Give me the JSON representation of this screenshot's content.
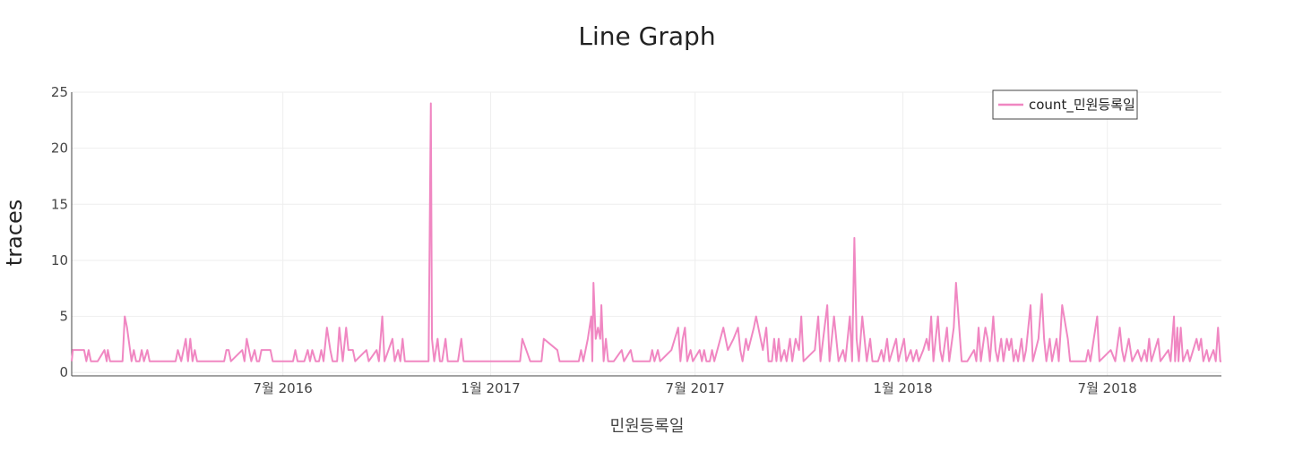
{
  "chart_data": {
    "type": "line",
    "title": "Line Graph",
    "xlabel": "민원등록일",
    "ylabel": "traces",
    "x_tick_labels": [
      "7월 2016",
      "1월 2017",
      "7월 2017",
      "1월 2018",
      "7월 2018"
    ],
    "x_ticks": [
      "2016-07-01",
      "2017-01-01",
      "2017-07-01",
      "2018-01-01",
      "2018-07-01"
    ],
    "xlim": [
      "2015-12-27",
      "2018-10-10"
    ],
    "y_ticks": [
      0,
      5,
      10,
      15,
      20,
      25
    ],
    "ylim": [
      -0.3,
      25
    ],
    "grid": true,
    "legend_position": "top-right",
    "series": [
      {
        "name": "count_민원등록일",
        "color": "#f087c2",
        "points": [
          [
            "2015-12-27",
            1
          ],
          [
            "2015-12-28",
            2
          ],
          [
            "2016-01-07",
            2
          ],
          [
            "2016-01-09",
            1
          ],
          [
            "2016-01-11",
            2
          ],
          [
            "2016-01-13",
            1
          ],
          [
            "2016-01-19",
            1
          ],
          [
            "2016-01-25",
            2
          ],
          [
            "2016-01-27",
            1
          ],
          [
            "2016-01-28",
            2
          ],
          [
            "2016-01-30",
            1
          ],
          [
            "2016-02-10",
            1
          ],
          [
            "2016-02-12",
            5
          ],
          [
            "2016-02-14",
            4
          ],
          [
            "2016-02-18",
            1
          ],
          [
            "2016-02-20",
            2
          ],
          [
            "2016-02-22",
            1
          ],
          [
            "2016-02-25",
            1
          ],
          [
            "2016-02-27",
            2
          ],
          [
            "2016-02-29",
            1
          ],
          [
            "2016-03-03",
            2
          ],
          [
            "2016-03-05",
            1
          ],
          [
            "2016-03-28",
            1
          ],
          [
            "2016-03-30",
            2
          ],
          [
            "2016-04-02",
            1
          ],
          [
            "2016-04-06",
            3
          ],
          [
            "2016-04-08",
            1
          ],
          [
            "2016-04-10",
            3
          ],
          [
            "2016-04-12",
            1
          ],
          [
            "2016-04-14",
            2
          ],
          [
            "2016-04-16",
            1
          ],
          [
            "2016-05-10",
            1
          ],
          [
            "2016-05-12",
            2
          ],
          [
            "2016-05-14",
            2
          ],
          [
            "2016-05-16",
            1
          ],
          [
            "2016-05-26",
            2
          ],
          [
            "2016-05-28",
            1
          ],
          [
            "2016-05-30",
            3
          ],
          [
            "2016-06-01",
            2
          ],
          [
            "2016-06-03",
            1
          ],
          [
            "2016-06-06",
            2
          ],
          [
            "2016-06-08",
            1
          ],
          [
            "2016-06-10",
            1
          ],
          [
            "2016-06-12",
            2
          ],
          [
            "2016-06-20",
            2
          ],
          [
            "2016-06-22",
            1
          ],
          [
            "2016-07-10",
            1
          ],
          [
            "2016-07-12",
            2
          ],
          [
            "2016-07-14",
            1
          ],
          [
            "2016-07-20",
            1
          ],
          [
            "2016-07-23",
            2
          ],
          [
            "2016-07-25",
            1
          ],
          [
            "2016-07-27",
            2
          ],
          [
            "2016-07-30",
            1
          ],
          [
            "2016-08-02",
            1
          ],
          [
            "2016-08-04",
            2
          ],
          [
            "2016-08-06",
            1
          ],
          [
            "2016-08-09",
            4
          ],
          [
            "2016-08-12",
            2
          ],
          [
            "2016-08-14",
            1
          ],
          [
            "2016-08-18",
            1
          ],
          [
            "2016-08-20",
            4
          ],
          [
            "2016-08-23",
            1
          ],
          [
            "2016-08-26",
            4
          ],
          [
            "2016-08-28",
            2
          ],
          [
            "2016-09-01",
            2
          ],
          [
            "2016-09-03",
            1
          ],
          [
            "2016-09-13",
            2
          ],
          [
            "2016-09-15",
            1
          ],
          [
            "2016-09-22",
            2
          ],
          [
            "2016-09-24",
            1
          ],
          [
            "2016-09-27",
            5
          ],
          [
            "2016-09-29",
            1
          ],
          [
            "2016-10-06",
            3
          ],
          [
            "2016-10-08",
            1
          ],
          [
            "2016-10-11",
            2
          ],
          [
            "2016-10-13",
            1
          ],
          [
            "2016-10-15",
            3
          ],
          [
            "2016-10-17",
            1
          ],
          [
            "2016-11-07",
            1
          ],
          [
            "2016-11-09",
            24
          ],
          [
            "2016-11-10",
            3
          ],
          [
            "2016-11-12",
            1
          ],
          [
            "2016-11-15",
            3
          ],
          [
            "2016-11-17",
            1
          ],
          [
            "2016-11-19",
            1
          ],
          [
            "2016-11-22",
            3
          ],
          [
            "2016-11-24",
            1
          ],
          [
            "2016-12-03",
            1
          ],
          [
            "2016-12-06",
            3
          ],
          [
            "2016-12-08",
            1
          ],
          [
            "2017-01-27",
            1
          ],
          [
            "2017-01-29",
            3
          ],
          [
            "2017-02-05",
            1
          ],
          [
            "2017-02-15",
            1
          ],
          [
            "2017-02-17",
            3
          ],
          [
            "2017-03-01",
            2
          ],
          [
            "2017-03-03",
            1
          ],
          [
            "2017-03-20",
            1
          ],
          [
            "2017-03-22",
            2
          ],
          [
            "2017-03-24",
            1
          ],
          [
            "2017-03-28",
            3
          ],
          [
            "2017-03-31",
            5
          ],
          [
            "2017-04-01",
            1
          ],
          [
            "2017-04-02",
            8
          ],
          [
            "2017-04-04",
            3
          ],
          [
            "2017-04-06",
            4
          ],
          [
            "2017-04-08",
            3
          ],
          [
            "2017-04-09",
            6
          ],
          [
            "2017-04-11",
            1
          ],
          [
            "2017-04-13",
            3
          ],
          [
            "2017-04-15",
            1
          ],
          [
            "2017-04-20",
            1
          ],
          [
            "2017-04-27",
            2
          ],
          [
            "2017-04-29",
            1
          ],
          [
            "2017-05-05",
            2
          ],
          [
            "2017-05-07",
            1
          ],
          [
            "2017-05-22",
            1
          ],
          [
            "2017-05-24",
            2
          ],
          [
            "2017-05-26",
            1
          ],
          [
            "2017-05-29",
            2
          ],
          [
            "2017-05-31",
            1
          ],
          [
            "2017-06-10",
            2
          ],
          [
            "2017-06-16",
            4
          ],
          [
            "2017-06-18",
            1
          ],
          [
            "2017-06-20",
            3
          ],
          [
            "2017-06-22",
            4
          ],
          [
            "2017-06-24",
            1
          ],
          [
            "2017-06-27",
            2
          ],
          [
            "2017-06-29",
            1
          ],
          [
            "2017-07-05",
            2
          ],
          [
            "2017-07-07",
            1
          ],
          [
            "2017-07-09",
            2
          ],
          [
            "2017-07-11",
            1
          ],
          [
            "2017-07-14",
            1
          ],
          [
            "2017-07-16",
            2
          ],
          [
            "2017-07-18",
            1
          ],
          [
            "2017-07-26",
            4
          ],
          [
            "2017-07-30",
            2
          ],
          [
            "2017-08-04",
            3
          ],
          [
            "2017-08-08",
            4
          ],
          [
            "2017-08-10",
            2
          ],
          [
            "2017-08-12",
            1
          ],
          [
            "2017-08-15",
            3
          ],
          [
            "2017-08-17",
            2
          ],
          [
            "2017-08-22",
            4
          ],
          [
            "2017-08-24",
            5
          ],
          [
            "2017-08-30",
            2
          ],
          [
            "2017-09-02",
            4
          ],
          [
            "2017-09-04",
            1
          ],
          [
            "2017-09-07",
            1
          ],
          [
            "2017-09-09",
            3
          ],
          [
            "2017-09-11",
            1
          ],
          [
            "2017-09-13",
            3
          ],
          [
            "2017-09-15",
            1
          ],
          [
            "2017-09-18",
            2
          ],
          [
            "2017-09-20",
            1
          ],
          [
            "2017-09-23",
            3
          ],
          [
            "2017-09-25",
            1
          ],
          [
            "2017-09-28",
            3
          ],
          [
            "2017-10-01",
            2
          ],
          [
            "2017-10-03",
            5
          ],
          [
            "2017-10-05",
            1
          ],
          [
            "2017-10-15",
            2
          ],
          [
            "2017-10-18",
            5
          ],
          [
            "2017-10-20",
            1
          ],
          [
            "2017-10-26",
            6
          ],
          [
            "2017-10-28",
            1
          ],
          [
            "2017-11-01",
            5
          ],
          [
            "2017-11-03",
            3
          ],
          [
            "2017-11-05",
            1
          ],
          [
            "2017-11-09",
            2
          ],
          [
            "2017-11-11",
            1
          ],
          [
            "2017-11-15",
            5
          ],
          [
            "2017-11-17",
            1
          ],
          [
            "2017-11-19",
            12
          ],
          [
            "2017-11-21",
            3
          ],
          [
            "2017-11-23",
            1
          ],
          [
            "2017-11-26",
            5
          ],
          [
            "2017-11-28",
            3
          ],
          [
            "2017-11-30",
            1
          ],
          [
            "2017-12-03",
            3
          ],
          [
            "2017-12-05",
            1
          ],
          [
            "2017-12-10",
            1
          ],
          [
            "2017-12-13",
            2
          ],
          [
            "2017-12-15",
            1
          ],
          [
            "2017-12-18",
            3
          ],
          [
            "2017-12-20",
            1
          ],
          [
            "2017-12-26",
            3
          ],
          [
            "2017-12-28",
            1
          ],
          [
            "2018-01-02",
            3
          ],
          [
            "2018-01-04",
            1
          ],
          [
            "2018-01-08",
            2
          ],
          [
            "2018-01-10",
            1
          ],
          [
            "2018-01-13",
            2
          ],
          [
            "2018-01-15",
            1
          ],
          [
            "2018-01-19",
            2
          ],
          [
            "2018-01-22",
            3
          ],
          [
            "2018-01-24",
            2
          ],
          [
            "2018-01-26",
            5
          ],
          [
            "2018-01-28",
            1
          ],
          [
            "2018-02-01",
            5
          ],
          [
            "2018-02-03",
            2
          ],
          [
            "2018-02-05",
            1
          ],
          [
            "2018-02-09",
            4
          ],
          [
            "2018-02-11",
            1
          ],
          [
            "2018-02-15",
            4
          ],
          [
            "2018-02-17",
            8
          ],
          [
            "2018-02-22",
            1
          ],
          [
            "2018-02-27",
            1
          ],
          [
            "2018-03-05",
            2
          ],
          [
            "2018-03-07",
            1
          ],
          [
            "2018-03-09",
            4
          ],
          [
            "2018-03-11",
            1
          ],
          [
            "2018-03-15",
            4
          ],
          [
            "2018-03-17",
            3
          ],
          [
            "2018-03-19",
            1
          ],
          [
            "2018-03-22",
            5
          ],
          [
            "2018-03-24",
            2
          ],
          [
            "2018-03-26",
            1
          ],
          [
            "2018-03-29",
            3
          ],
          [
            "2018-03-31",
            1
          ],
          [
            "2018-04-03",
            3
          ],
          [
            "2018-04-05",
            2
          ],
          [
            "2018-04-07",
            3
          ],
          [
            "2018-04-09",
            1
          ],
          [
            "2018-04-11",
            2
          ],
          [
            "2018-04-13",
            1
          ],
          [
            "2018-04-16",
            3
          ],
          [
            "2018-04-18",
            1
          ],
          [
            "2018-04-20",
            2
          ],
          [
            "2018-04-24",
            6
          ],
          [
            "2018-04-26",
            1
          ],
          [
            "2018-05-01",
            3
          ],
          [
            "2018-05-04",
            7
          ],
          [
            "2018-05-06",
            3
          ],
          [
            "2018-05-08",
            1
          ],
          [
            "2018-05-11",
            3
          ],
          [
            "2018-05-13",
            1
          ],
          [
            "2018-05-17",
            3
          ],
          [
            "2018-05-19",
            1
          ],
          [
            "2018-05-22",
            6
          ],
          [
            "2018-05-27",
            3
          ],
          [
            "2018-05-29",
            1
          ],
          [
            "2018-06-12",
            1
          ],
          [
            "2018-06-14",
            2
          ],
          [
            "2018-06-16",
            1
          ],
          [
            "2018-06-22",
            5
          ],
          [
            "2018-06-24",
            1
          ],
          [
            "2018-07-04",
            2
          ],
          [
            "2018-07-08",
            1
          ],
          [
            "2018-07-12",
            4
          ],
          [
            "2018-07-14",
            2
          ],
          [
            "2018-07-16",
            1
          ],
          [
            "2018-07-20",
            3
          ],
          [
            "2018-07-23",
            1
          ],
          [
            "2018-07-28",
            2
          ],
          [
            "2018-07-31",
            1
          ],
          [
            "2018-08-03",
            2
          ],
          [
            "2018-08-05",
            1
          ],
          [
            "2018-08-07",
            3
          ],
          [
            "2018-08-09",
            1
          ],
          [
            "2018-08-15",
            3
          ],
          [
            "2018-08-17",
            1
          ],
          [
            "2018-08-24",
            2
          ],
          [
            "2018-08-26",
            1
          ],
          [
            "2018-08-29",
            5
          ],
          [
            "2018-08-30",
            1
          ],
          [
            "2018-09-01",
            4
          ],
          [
            "2018-09-02",
            1
          ],
          [
            "2018-09-04",
            4
          ],
          [
            "2018-09-06",
            1
          ],
          [
            "2018-09-10",
            2
          ],
          [
            "2018-09-12",
            1
          ],
          [
            "2018-09-18",
            3
          ],
          [
            "2018-09-20",
            2
          ],
          [
            "2018-09-22",
            3
          ],
          [
            "2018-09-24",
            1
          ],
          [
            "2018-09-27",
            2
          ],
          [
            "2018-09-29",
            1
          ],
          [
            "2018-10-03",
            2
          ],
          [
            "2018-10-05",
            1
          ],
          [
            "2018-10-07",
            4
          ],
          [
            "2018-10-09",
            1
          ],
          [
            "2018-10-10",
            1
          ]
        ]
      }
    ]
  }
}
